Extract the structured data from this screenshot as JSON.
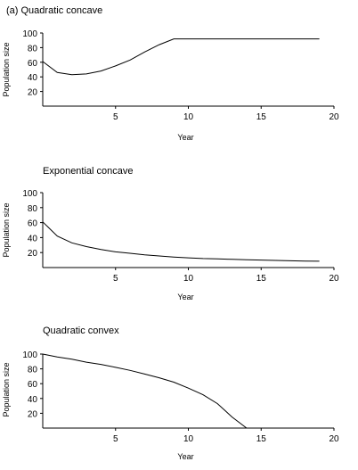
{
  "chart_data": [
    {
      "type": "line",
      "title": "(a) Quadratic concave",
      "xlabel": "Year",
      "ylabel": "Population size",
      "xlim": [
        0,
        20
      ],
      "ylim": [
        0,
        100
      ],
      "xticks": [
        5,
        10,
        15,
        20
      ],
      "yticks": [
        20,
        40,
        60,
        80,
        100
      ],
      "grid": false,
      "series": [
        {
          "x": [
            0,
            1,
            2,
            3,
            4,
            5,
            6,
            7,
            8,
            9,
            10,
            11,
            12,
            13,
            14,
            15,
            16,
            17,
            18,
            19
          ],
          "y": [
            61,
            46,
            43,
            44,
            48,
            55,
            63,
            74,
            84,
            92,
            92,
            92,
            92,
            92,
            92,
            92,
            92,
            92,
            92,
            92
          ]
        }
      ]
    },
    {
      "type": "line",
      "title": "Exponential concave",
      "xlabel": "Year",
      "ylabel": "Population size",
      "xlim": [
        0,
        20
      ],
      "ylim": [
        0,
        100
      ],
      "xticks": [
        5,
        10,
        15,
        20
      ],
      "yticks": [
        20,
        40,
        60,
        80,
        100
      ],
      "grid": false,
      "series": [
        {
          "x": [
            0,
            1,
            2,
            3,
            4,
            5,
            6,
            7,
            8,
            9,
            10,
            11,
            12,
            13,
            14,
            15,
            16,
            17,
            18,
            19
          ],
          "y": [
            61,
            42,
            33,
            28,
            24,
            21,
            19,
            17,
            15.5,
            14,
            13,
            12,
            11.5,
            11,
            10.5,
            10,
            9.5,
            9,
            8.7,
            8.4
          ]
        }
      ]
    },
    {
      "type": "line",
      "title": "Quadratic convex",
      "xlabel": "Year",
      "ylabel": "Population size",
      "xlim": [
        0,
        20
      ],
      "ylim": [
        0,
        100
      ],
      "xticks": [
        5,
        10,
        15,
        20
      ],
      "yticks": [
        20,
        40,
        60,
        80,
        100
      ],
      "grid": false,
      "series": [
        {
          "x": [
            0,
            1,
            2,
            3,
            4,
            5,
            6,
            7,
            8,
            9,
            10,
            11,
            12,
            13,
            14
          ],
          "y": [
            100,
            96,
            93,
            89,
            86,
            82,
            78,
            73,
            68,
            62,
            54,
            45,
            33,
            15,
            0
          ]
        }
      ]
    }
  ]
}
